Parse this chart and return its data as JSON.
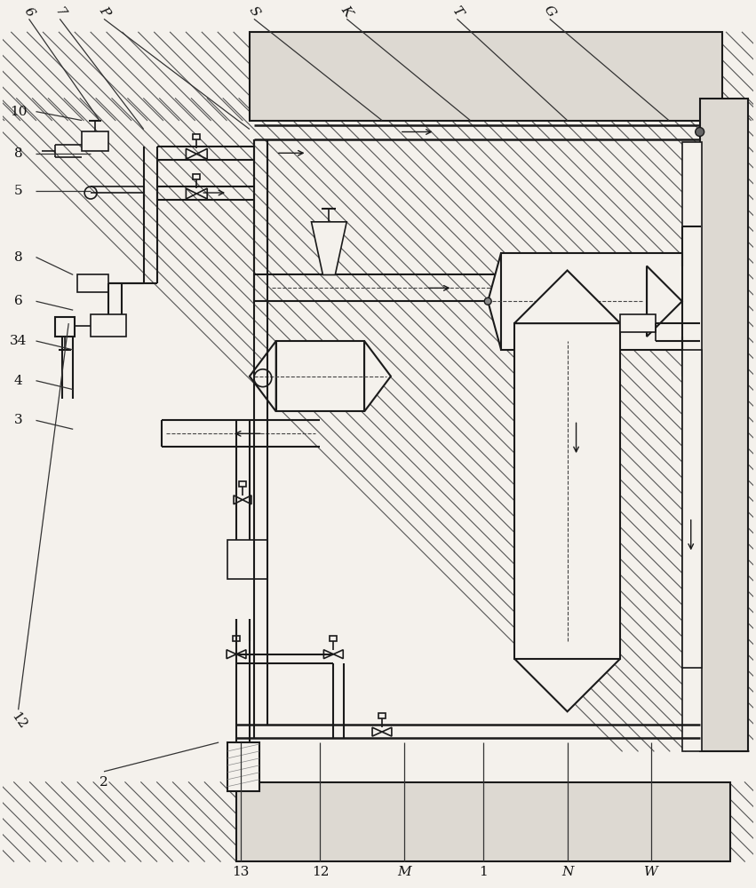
{
  "bg_color": "#f4f1ec",
  "line_color": "#1a1a1a",
  "hatch_line_color": "#555555",
  "top_labels": [
    "6",
    "7",
    "P",
    "S",
    "K",
    "T",
    "G"
  ],
  "left_labels": [
    "10",
    "8",
    "5",
    "8",
    "6",
    "34",
    "4",
    "3"
  ],
  "bottom_labels": [
    "12",
    "2",
    "13",
    "12",
    "M",
    "1",
    "N",
    "W"
  ]
}
